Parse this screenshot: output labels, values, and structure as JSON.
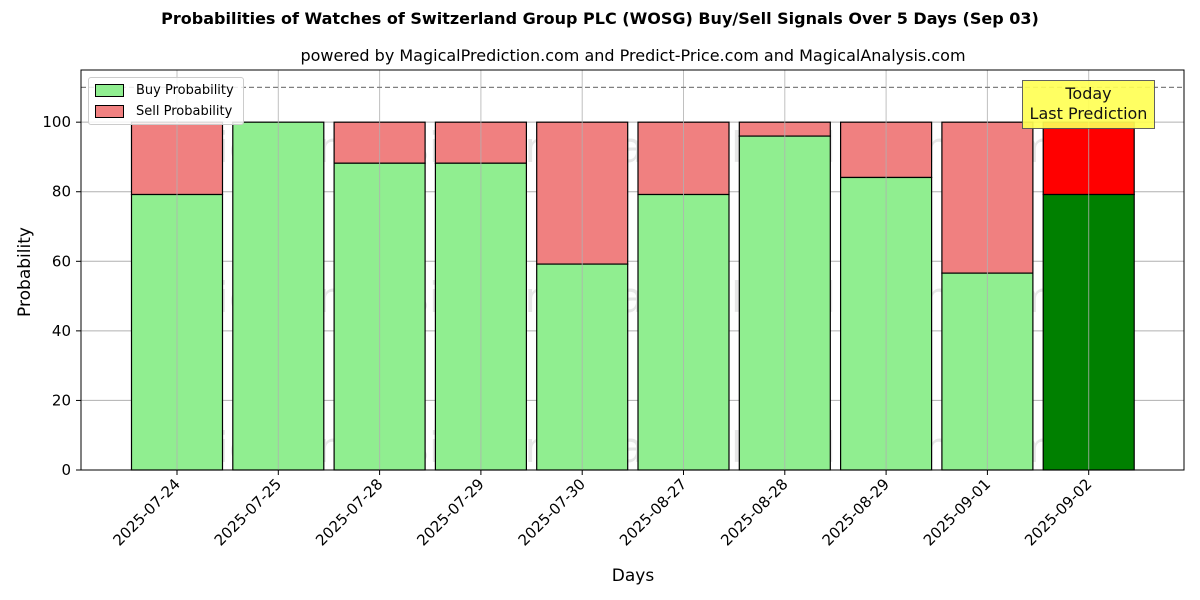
{
  "header": {
    "title": "Probabilities of Watches of Switzerland Group PLC (WOSG) Buy/Sell Signals Over 5 Days (Sep 03)",
    "subtitle": "powered by MagicalPrediction.com and Predict-Price.com and MagicalAnalysis.com"
  },
  "legend": {
    "buy_label": "Buy Probability",
    "sell_label": "Sell Probability"
  },
  "annotation": {
    "line1": "Today",
    "line2": "Last Prediction"
  },
  "watermarks": [
    "MagicalAnalysis.com",
    "MagicalPrediction.com"
  ],
  "colors": {
    "buy": "#90ee90",
    "sell": "#f08080",
    "today_buy": "#008000",
    "today_sell": "#ff0000",
    "annotation_bg": "#ffff55"
  },
  "chart_data": {
    "type": "bar",
    "stacked": true,
    "title": "Probabilities of Watches of Switzerland Group PLC (WOSG) Buy/Sell Signals Over 5 Days (Sep 03)",
    "subtitle": "powered by MagicalPrediction.com and Predict-Price.com and MagicalAnalysis.com",
    "xlabel": "Days",
    "ylabel": "Probability",
    "ylim": [
      0,
      115
    ],
    "yticks": [
      0,
      20,
      40,
      60,
      80,
      100
    ],
    "grid": true,
    "legend_position": "upper left",
    "reference_line": {
      "y": 110,
      "style": "dashed",
      "color": "#808080"
    },
    "categories": [
      "2025-07-24",
      "2025-07-25",
      "2025-07-28",
      "2025-07-29",
      "2025-07-30",
      "2025-08-27",
      "2025-08-28",
      "2025-08-29",
      "2025-09-01",
      "2025-09-02"
    ],
    "series": [
      {
        "name": "Buy Probability",
        "values": [
          79.2,
          100.0,
          88.2,
          88.2,
          59.2,
          79.2,
          96.0,
          84.1,
          56.6,
          79.2
        ]
      },
      {
        "name": "Sell Probability",
        "values": [
          20.8,
          0.0,
          11.8,
          11.8,
          40.8,
          20.8,
          4.0,
          15.9,
          43.4,
          20.8
        ]
      }
    ],
    "annotations": [
      {
        "text": "Today\nLast Prediction",
        "x": "2025-09-02"
      }
    ]
  }
}
